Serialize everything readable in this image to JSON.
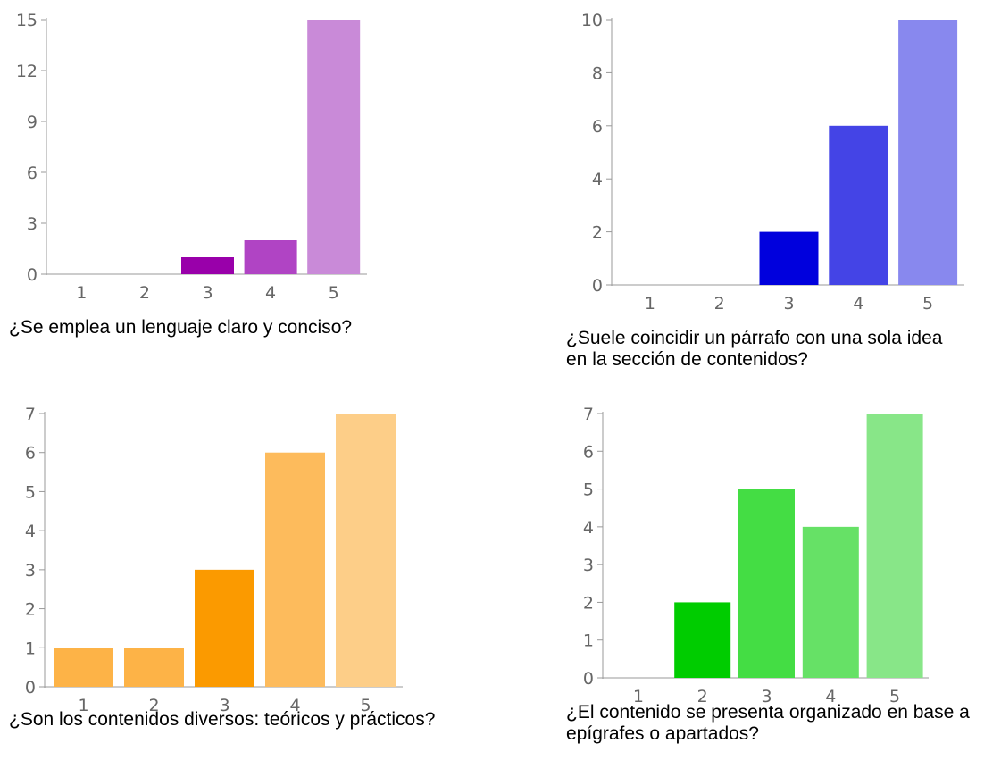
{
  "chart_data": [
    {
      "type": "bar",
      "title": "¿Se emplea un lenguaje claro y conciso?",
      "categories": [
        "1",
        "2",
        "3",
        "4",
        "5"
      ],
      "values": [
        0,
        0,
        1,
        2,
        15
      ],
      "ylim": [
        0,
        15
      ],
      "yticks": [
        "0",
        "3",
        "6",
        "9",
        "12",
        "15"
      ],
      "colors": [
        "#9900aa",
        "#9900aa",
        "#9900aa",
        "#b044c4",
        "#c98ad8"
      ],
      "xlabel": "",
      "ylabel": "",
      "grid": false,
      "legend": "none"
    },
    {
      "type": "bar",
      "title": "¿Suele coincidir un párrafo con una sola idea en la sección de contenidos?",
      "categories": [
        "1",
        "2",
        "3",
        "4",
        "5"
      ],
      "values": [
        0,
        0,
        2,
        6,
        10
      ],
      "ylim": [
        0,
        10
      ],
      "yticks": [
        "0",
        "2",
        "4",
        "6",
        "8",
        "10"
      ],
      "colors": [
        "#0000dd",
        "#0000dd",
        "#0000dd",
        "#4444e6",
        "#8888ee"
      ],
      "xlabel": "",
      "ylabel": "",
      "grid": false,
      "legend": "none"
    },
    {
      "type": "bar",
      "title": "¿Son los contenidos diversos: teóricos y prácticos?",
      "categories": [
        "1",
        "2",
        "3",
        "4",
        "5"
      ],
      "values": [
        1,
        1,
        3,
        6,
        7
      ],
      "ylim": [
        0,
        7
      ],
      "yticks": [
        "0",
        "1",
        "2",
        "3",
        "4",
        "5",
        "6",
        "7"
      ],
      "colors": [
        "#fdb347",
        "#fdb347",
        "#fb9a00",
        "#fdbb5c",
        "#fdce88"
      ],
      "xlabel": "",
      "ylabel": "",
      "grid": false,
      "legend": "none"
    },
    {
      "type": "bar",
      "title": "¿El contenido se presenta organizado en base a epígrafes o apartados?",
      "categories": [
        "1",
        "2",
        "3",
        "4",
        "5"
      ],
      "values": [
        0,
        2,
        5,
        4,
        7
      ],
      "ylim": [
        0,
        7
      ],
      "yticks": [
        "0",
        "1",
        "2",
        "3",
        "4",
        "5",
        "6",
        "7"
      ],
      "colors": [
        "#00cc00",
        "#00cc00",
        "#44dd44",
        "#66e166",
        "#88e688"
      ],
      "xlabel": "",
      "ylabel": "",
      "grid": false,
      "legend": "none"
    }
  ]
}
